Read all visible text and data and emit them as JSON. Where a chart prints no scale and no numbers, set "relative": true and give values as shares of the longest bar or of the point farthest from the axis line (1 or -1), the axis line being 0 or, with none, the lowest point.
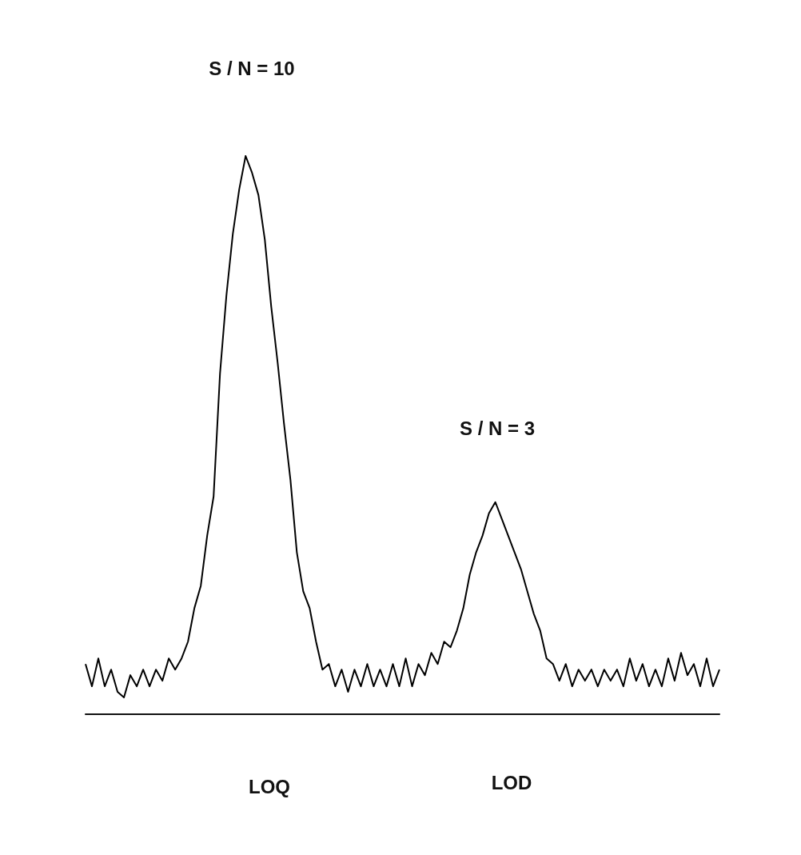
{
  "chart_data": {
    "type": "line",
    "relative": true,
    "color": "#000000",
    "annotations": [
      "S / N = 10",
      "S / N = 3",
      "LOQ",
      "LOD"
    ],
    "categories": [
      null,
      null,
      null,
      null,
      null,
      null,
      null,
      null,
      null,
      null,
      null,
      null,
      null,
      null,
      null,
      null,
      null,
      null,
      null,
      null,
      null,
      null,
      null,
      null,
      null,
      null,
      null,
      null,
      null,
      null,
      null,
      null,
      null,
      null,
      null,
      null,
      null,
      null,
      null,
      null,
      null,
      null,
      null,
      null,
      null,
      null,
      null,
      null,
      null,
      null,
      null,
      null,
      null,
      null,
      null,
      null,
      null,
      null,
      null,
      null,
      null,
      null,
      null,
      null,
      null,
      null,
      null,
      null,
      null,
      null,
      null,
      null,
      null,
      null,
      null,
      null,
      null,
      null,
      null,
      null,
      null,
      null,
      null,
      null,
      null,
      null,
      null,
      null,
      null,
      null,
      null,
      null,
      null,
      null,
      null,
      null,
      null,
      null,
      null,
      null
    ],
    "values": [
      0.09,
      0.05,
      0.1,
      0.05,
      0.08,
      0.04,
      0.03,
      0.07,
      0.05,
      0.08,
      0.05,
      0.08,
      0.06,
      0.1,
      0.08,
      0.1,
      0.13,
      0.19,
      0.23,
      0.32,
      0.39,
      0.61,
      0.75,
      0.86,
      0.94,
      1.0,
      0.97,
      0.93,
      0.85,
      0.73,
      0.63,
      0.52,
      0.42,
      0.29,
      0.22,
      0.19,
      0.13,
      0.08,
      0.09,
      0.05,
      0.08,
      0.04,
      0.08,
      0.05,
      0.09,
      0.05,
      0.08,
      0.05,
      0.09,
      0.05,
      0.1,
      0.05,
      0.09,
      0.07,
      0.11,
      0.09,
      0.13,
      0.12,
      0.15,
      0.19,
      0.25,
      0.29,
      0.32,
      0.36,
      0.38,
      0.35,
      0.32,
      0.29,
      0.26,
      0.22,
      0.18,
      0.15,
      0.1,
      0.09,
      0.06,
      0.09,
      0.05,
      0.08,
      0.06,
      0.08,
      0.05,
      0.08,
      0.06,
      0.08,
      0.05,
      0.1,
      0.06,
      0.09,
      0.05,
      0.08,
      0.05,
      0.1,
      0.06,
      0.11,
      0.07,
      0.09,
      0.05,
      0.1,
      0.05,
      0.08
    ]
  }
}
